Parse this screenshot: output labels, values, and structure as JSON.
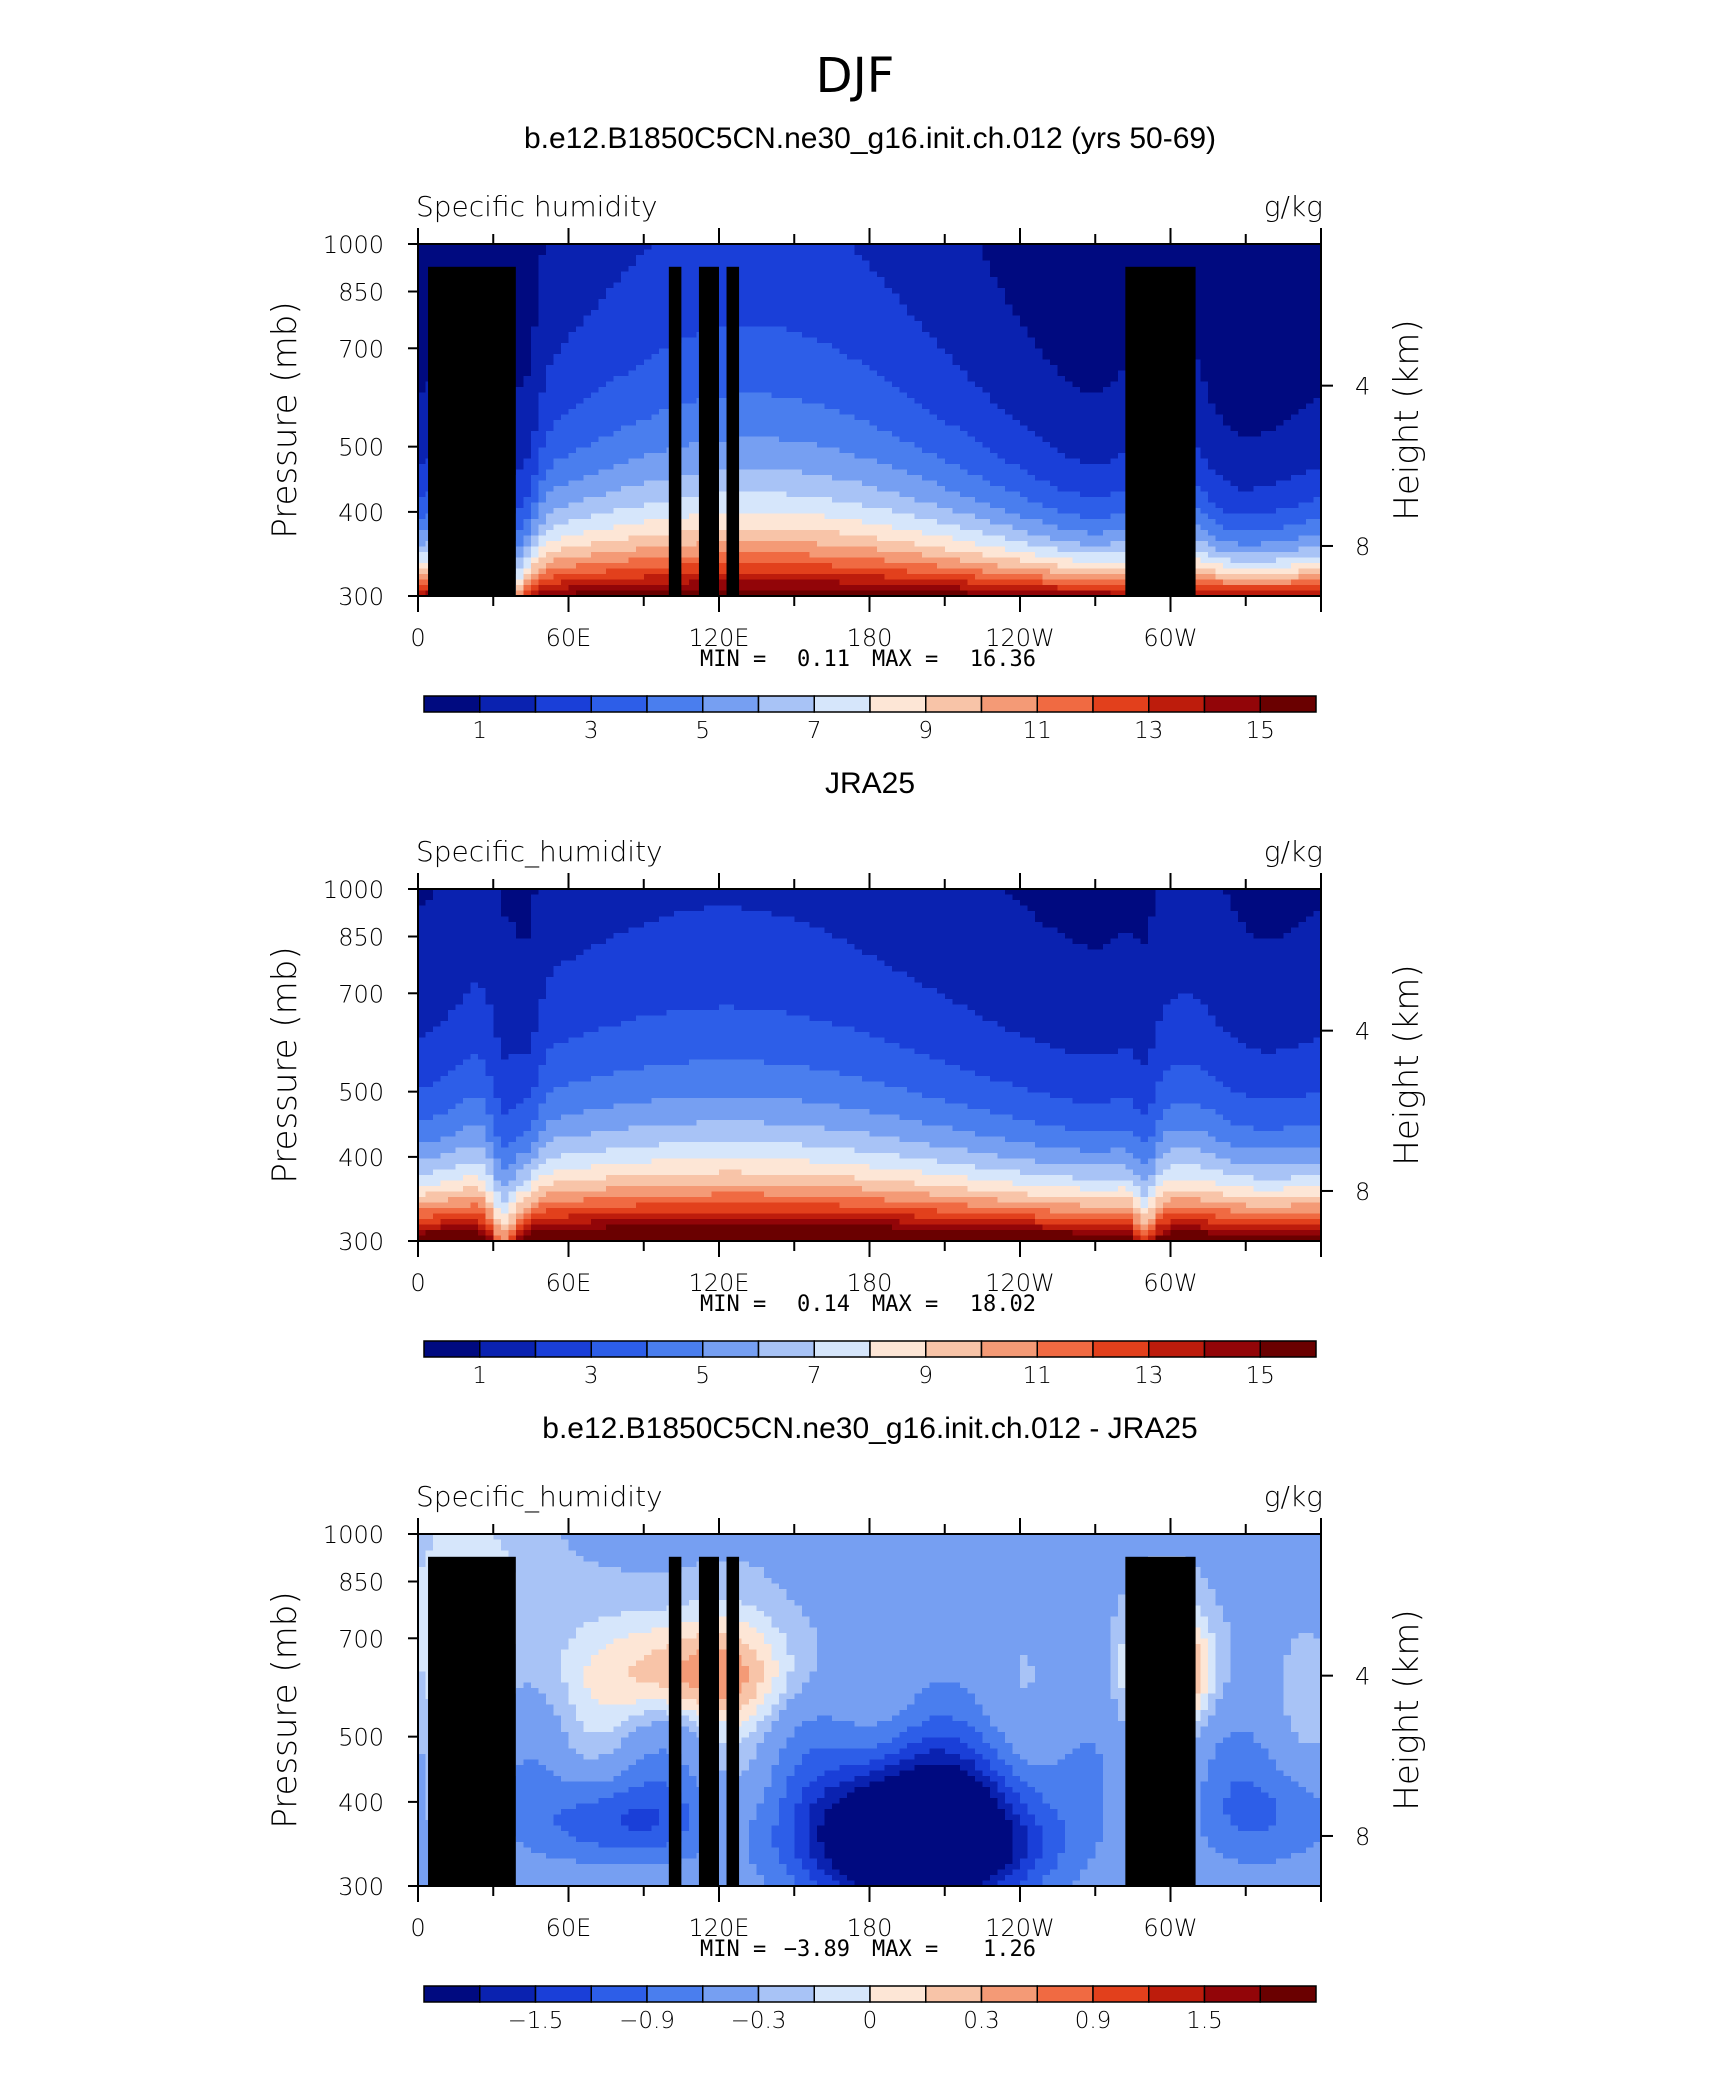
{
  "figure": {
    "title": "DJF"
  },
  "chart_data": [
    {
      "type": "contour",
      "title": "b.e12.B1850C5CN.ne30_g16.init.ch.012 (yrs 50-69)",
      "left_label": "Specific humidity",
      "units": "g/kg",
      "ylabel": "Pressure (mb)",
      "y2label": "Height (km)",
      "y_ticks": [
        "300",
        "400",
        "500",
        "700",
        "850",
        "1000"
      ],
      "y_tick_values": [
        300,
        400,
        500,
        700,
        850,
        1000
      ],
      "y2_ticks": [
        "8",
        "4"
      ],
      "x_ticks": [
        "0",
        "60E",
        "120E",
        "180",
        "120W",
        "60W"
      ],
      "x_tick_values": [
        0,
        60,
        120,
        180,
        240,
        300
      ],
      "xlim": [
        0,
        360
      ],
      "ylim": [
        1000,
        300
      ],
      "min_label": "MIN =",
      "min_value": "0.11",
      "max_label": "MAX =",
      "max_value": "16.36",
      "colorbar_ticks": [
        "1",
        "3",
        "5",
        "7",
        "9",
        "11",
        "13",
        "15"
      ],
      "colorbar_levels": [
        1,
        2,
        3,
        4,
        5,
        6,
        7,
        8,
        9,
        10,
        11,
        12,
        13,
        14,
        15
      ],
      "mask": true
    },
    {
      "type": "contour",
      "title": "JRA25",
      "left_label": "Specific_humidity",
      "units": "g/kg",
      "ylabel": "Pressure (mb)",
      "y2label": "Height (km)",
      "y_ticks": [
        "300",
        "400",
        "500",
        "700",
        "850",
        "1000"
      ],
      "y_tick_values": [
        300,
        400,
        500,
        700,
        850,
        1000
      ],
      "y2_ticks": [
        "8",
        "4"
      ],
      "x_ticks": [
        "0",
        "60E",
        "120E",
        "180",
        "120W",
        "60W"
      ],
      "x_tick_values": [
        0,
        60,
        120,
        180,
        240,
        300
      ],
      "xlim": [
        0,
        360
      ],
      "ylim": [
        1000,
        300
      ],
      "min_label": "MIN =",
      "min_value": "0.14",
      "max_label": "MAX =",
      "max_value": "18.02",
      "colorbar_ticks": [
        "1",
        "3",
        "5",
        "7",
        "9",
        "11",
        "13",
        "15"
      ],
      "colorbar_levels": [
        1,
        2,
        3,
        4,
        5,
        6,
        7,
        8,
        9,
        10,
        11,
        12,
        13,
        14,
        15
      ],
      "mask": false
    },
    {
      "type": "contour",
      "title": "b.e12.B1850C5CN.ne30_g16.init.ch.012 - JRA25",
      "left_label": "Specific_humidity",
      "units": "g/kg",
      "ylabel": "Pressure (mb)",
      "y2label": "Height (km)",
      "y_ticks": [
        "300",
        "400",
        "500",
        "700",
        "850",
        "1000"
      ],
      "y_tick_values": [
        300,
        400,
        500,
        700,
        850,
        1000
      ],
      "y2_ticks": [
        "8",
        "4"
      ],
      "x_ticks": [
        "0",
        "60E",
        "120E",
        "180",
        "120W",
        "60W"
      ],
      "x_tick_values": [
        0,
        60,
        120,
        180,
        240,
        300
      ],
      "xlim": [
        0,
        360
      ],
      "ylim": [
        1000,
        300
      ],
      "min_label": "MIN =",
      "min_value": "−3.89",
      "max_label": "MAX =",
      "max_value": "1.26",
      "colorbar_ticks": [
        "−1.5",
        "−0.9",
        "−0.3",
        "0",
        "0.3",
        "0.9",
        "1.5"
      ],
      "colorbar_levels": [
        -1.8,
        -1.5,
        -1.2,
        -0.9,
        -0.6,
        -0.3,
        -0.15,
        0,
        0.15,
        0.3,
        0.6,
        0.9,
        1.2,
        1.5,
        1.8
      ],
      "mask": true
    }
  ],
  "colors": {
    "scale": [
      "#000a80",
      "#0a22b0",
      "#1a3fd8",
      "#2d5ee8",
      "#4a7eee",
      "#769ff2",
      "#a8c3f6",
      "#d6e6fb",
      "#fde6d6",
      "#f8c4a8",
      "#f49a76",
      "#f06a42",
      "#e2401c",
      "#bd1c0c",
      "#920508",
      "#6a0000"
    ]
  }
}
